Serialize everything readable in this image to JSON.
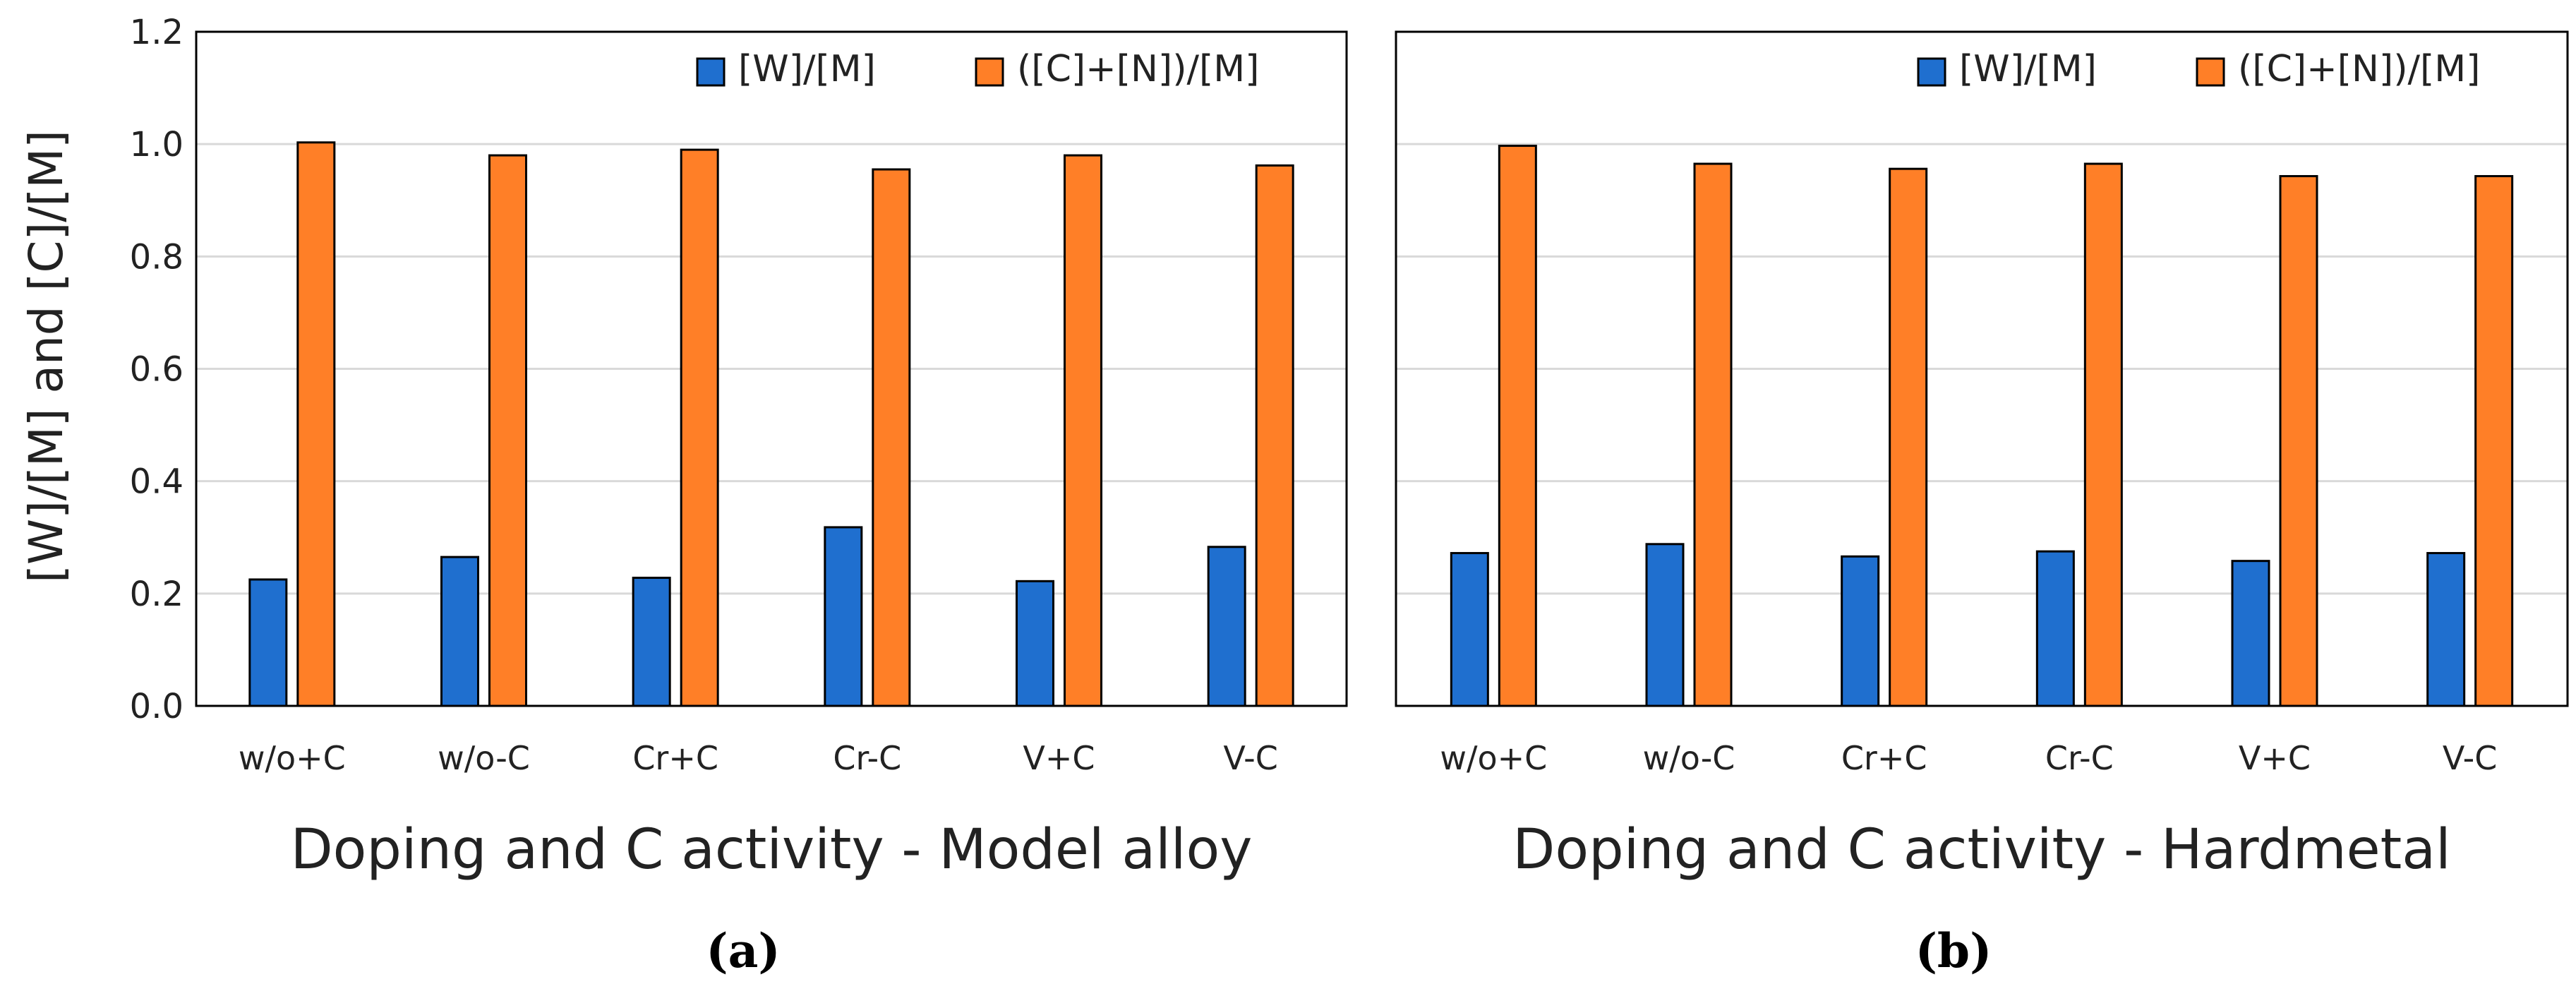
{
  "figure": {
    "ylabel": "[W]/[M] and [C]/[M]",
    "legend": [
      "[W]/[M]",
      "([C]+[N])/[M]"
    ],
    "colors": {
      "series1": "#1f6fcf",
      "series2": "#ff7f27",
      "grid": "#d9d9d9",
      "frame": "#000000"
    }
  },
  "chart_data": [
    {
      "type": "bar",
      "panel": "(a)",
      "xlabel": "Doping and C activity - Model alloy",
      "ylabel": "[W]/[M] and [C]/[M]",
      "ylim": [
        0,
        1.2
      ],
      "yticks": [
        "0.0",
        "0.2",
        "0.4",
        "0.6",
        "0.8",
        "1.0",
        "1.2"
      ],
      "grid": true,
      "legend_position": "top-right",
      "categories": [
        "w/o+C",
        "w/o-C",
        "Cr+C",
        "Cr-C",
        "V+C",
        "V-C"
      ],
      "series": [
        {
          "name": "[W]/[M]",
          "values": [
            0.225,
            0.265,
            0.228,
            0.318,
            0.222,
            0.283
          ]
        },
        {
          "name": "([C]+[N])/[M]",
          "values": [
            1.003,
            0.98,
            0.99,
            0.955,
            0.98,
            0.962
          ]
        }
      ]
    },
    {
      "type": "bar",
      "panel": "(b)",
      "xlabel": "Doping and C activity - Hardmetal",
      "ylim": [
        0,
        1.2
      ],
      "grid": true,
      "legend_position": "top-right",
      "categories": [
        "w/o+C",
        "w/o-C",
        "Cr+C",
        "Cr-C",
        "V+C",
        "V-C"
      ],
      "series": [
        {
          "name": "[W]/[M]",
          "values": [
            0.272,
            0.288,
            0.266,
            0.275,
            0.258,
            0.272
          ]
        },
        {
          "name": "([C]+[N])/[M]",
          "values": [
            0.997,
            0.965,
            0.956,
            0.965,
            0.943,
            0.943
          ]
        }
      ]
    }
  ]
}
